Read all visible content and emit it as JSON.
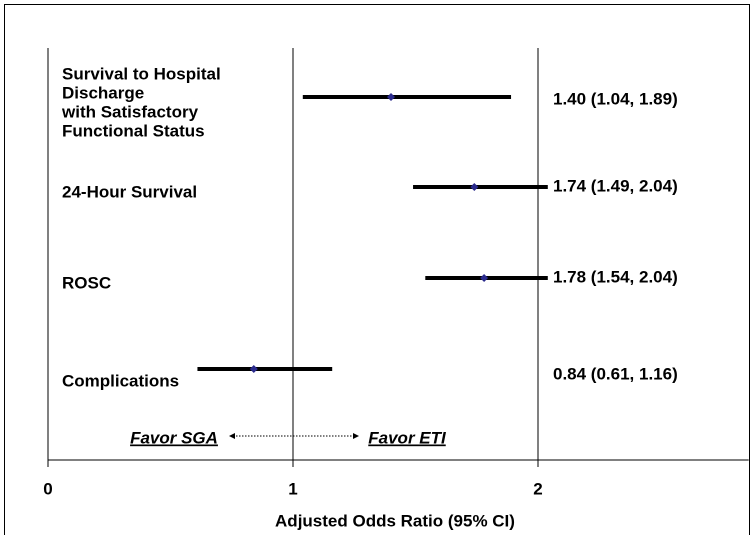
{
  "chart_data": {
    "type": "forest",
    "categories": [
      [
        "Survival to Hospital",
        "Discharge",
        "with Satisfactory",
        "Functional Status"
      ],
      [
        "24-Hour Survival"
      ],
      [
        "ROSC"
      ],
      [
        "Complications"
      ]
    ],
    "values": [
      1.4,
      1.74,
      1.78,
      0.84
    ],
    "lower": [
      1.04,
      1.49,
      1.54,
      0.61
    ],
    "upper": [
      1.89,
      2.04,
      2.04,
      1.16
    ],
    "value_labels": [
      "1.40 (1.04, 1.89)",
      "1.74 (1.49, 2.04)",
      "1.78 (1.54, 2.04)",
      "0.84 (0.61, 1.16)"
    ],
    "xlabel": "Adjusted Odds Ratio (95% CI)",
    "xlim": [
      0,
      2.86
    ],
    "xticks": [
      0,
      1,
      2
    ],
    "grid": true,
    "color": "#000000",
    "marker_color": "#2a2a8c",
    "annotations": [
      "Favor SGA",
      "Favor ETI"
    ]
  }
}
